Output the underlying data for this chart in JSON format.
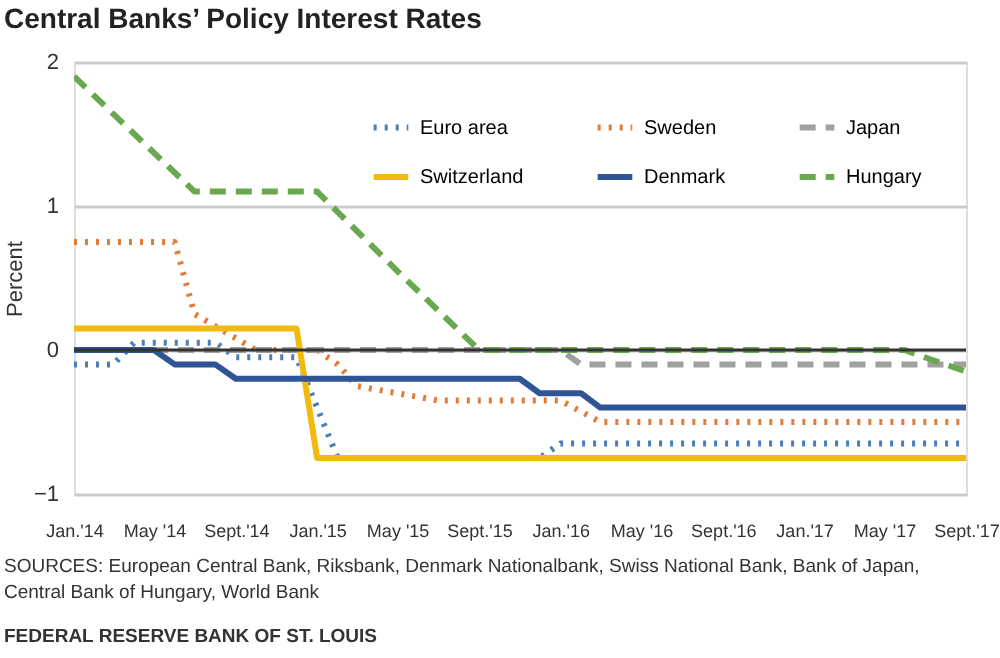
{
  "chart_data": {
    "type": "line",
    "title": "Central Banks’ Policy Interest Rates",
    "ylabel": "Percent",
    "xlim": [
      "2014-01",
      "2017-09"
    ],
    "xticks": [
      {
        "value": "2014-01",
        "label": "Jan.'14"
      },
      {
        "value": "2014-05",
        "label": "May '14"
      },
      {
        "value": "2014-09",
        "label": "Sept.'14"
      },
      {
        "value": "2015-01",
        "label": "Jan.'15"
      },
      {
        "value": "2015-05",
        "label": "May '15"
      },
      {
        "value": "2015-09",
        "label": "Sept.'15"
      },
      {
        "value": "2016-01",
        "label": "Jan.'16"
      },
      {
        "value": "2016-05",
        "label": "May '16"
      },
      {
        "value": "2016-09",
        "label": "Sept.'16"
      },
      {
        "value": "2017-01",
        "label": "Jan.'17"
      },
      {
        "value": "2017-05",
        "label": "May '17"
      },
      {
        "value": "2017-09",
        "label": "Sept.'17"
      }
    ],
    "ylim": [
      -1,
      2
    ],
    "yticks": [
      -1,
      0,
      1,
      2
    ],
    "grid": "y",
    "legend": "top right",
    "marker": "none",
    "ref_lines": [
      {
        "axis": "y",
        "value": 0,
        "color": "#333333"
      }
    ],
    "series": [
      {
        "name": "Euro area",
        "color": "#4a7fb5",
        "line_style": "dotted",
        "x": [
          "2014-01",
          "2014-03",
          "2014-04",
          "2014-08",
          "2014-09",
          "2014-12",
          "2015-02",
          "2015-12",
          "2016-01",
          "2017-09"
        ],
        "values": [
          -0.1,
          -0.1,
          0.05,
          0.05,
          -0.05,
          -0.05,
          -0.75,
          -0.75,
          -0.65,
          -0.65
        ]
      },
      {
        "name": "Sweden",
        "color": "#e07b39",
        "line_style": "dotted",
        "x": [
          "2014-01",
          "2014-06",
          "2014-07",
          "2014-10",
          "2015-01",
          "2015-02",
          "2015-03",
          "2015-07",
          "2016-01",
          "2016-03",
          "2017-09"
        ],
        "values": [
          0.75,
          0.75,
          0.25,
          0,
          0,
          -0.1,
          -0.25,
          -0.35,
          -0.35,
          -0.5,
          -0.5
        ]
      },
      {
        "name": "Japan",
        "color": "#a0a0a0",
        "line_style": "dashed",
        "x": [
          "2014-01",
          "2016-01",
          "2016-02",
          "2017-09"
        ],
        "values": [
          0,
          0,
          -0.1,
          -0.1
        ]
      },
      {
        "name": "Switzerland",
        "color": "#f2b90f",
        "line_style": "solid",
        "x": [
          "2014-01",
          "2014-12",
          "2015-01",
          "2017-09"
        ],
        "values": [
          0.15,
          0.15,
          -0.75,
          -0.75
        ]
      },
      {
        "name": "Denmark",
        "color": "#2f5597",
        "line_style": "solid",
        "x": [
          "2014-01",
          "2014-05",
          "2014-06",
          "2014-08",
          "2014-09",
          "2015-11",
          "2015-12",
          "2016-02",
          "2016-03",
          "2017-09"
        ],
        "values": [
          0,
          0,
          -0.1,
          -0.1,
          -0.2,
          -0.2,
          -0.3,
          -0.3,
          -0.4,
          -0.4
        ]
      },
      {
        "name": "Hungary",
        "color": "#6aa84f",
        "line_style": "dashed",
        "x": [
          "2014-01",
          "2014-07",
          "2015-01",
          "2015-05",
          "2015-09",
          "2017-06",
          "2017-07",
          "2017-09"
        ],
        "values": [
          1.9,
          1.1,
          1.1,
          0.55,
          0,
          0,
          -0.05,
          -0.15
        ]
      }
    ],
    "annotations": [
      "SOURCES: European Central Bank, Riksbank, Denmark Nationalbank, Swiss National Bank, Bank of Japan, Central Bank of Hungary, World Bank",
      "FEDERAL RESERVE BANK OF ST. LOUIS"
    ]
  }
}
